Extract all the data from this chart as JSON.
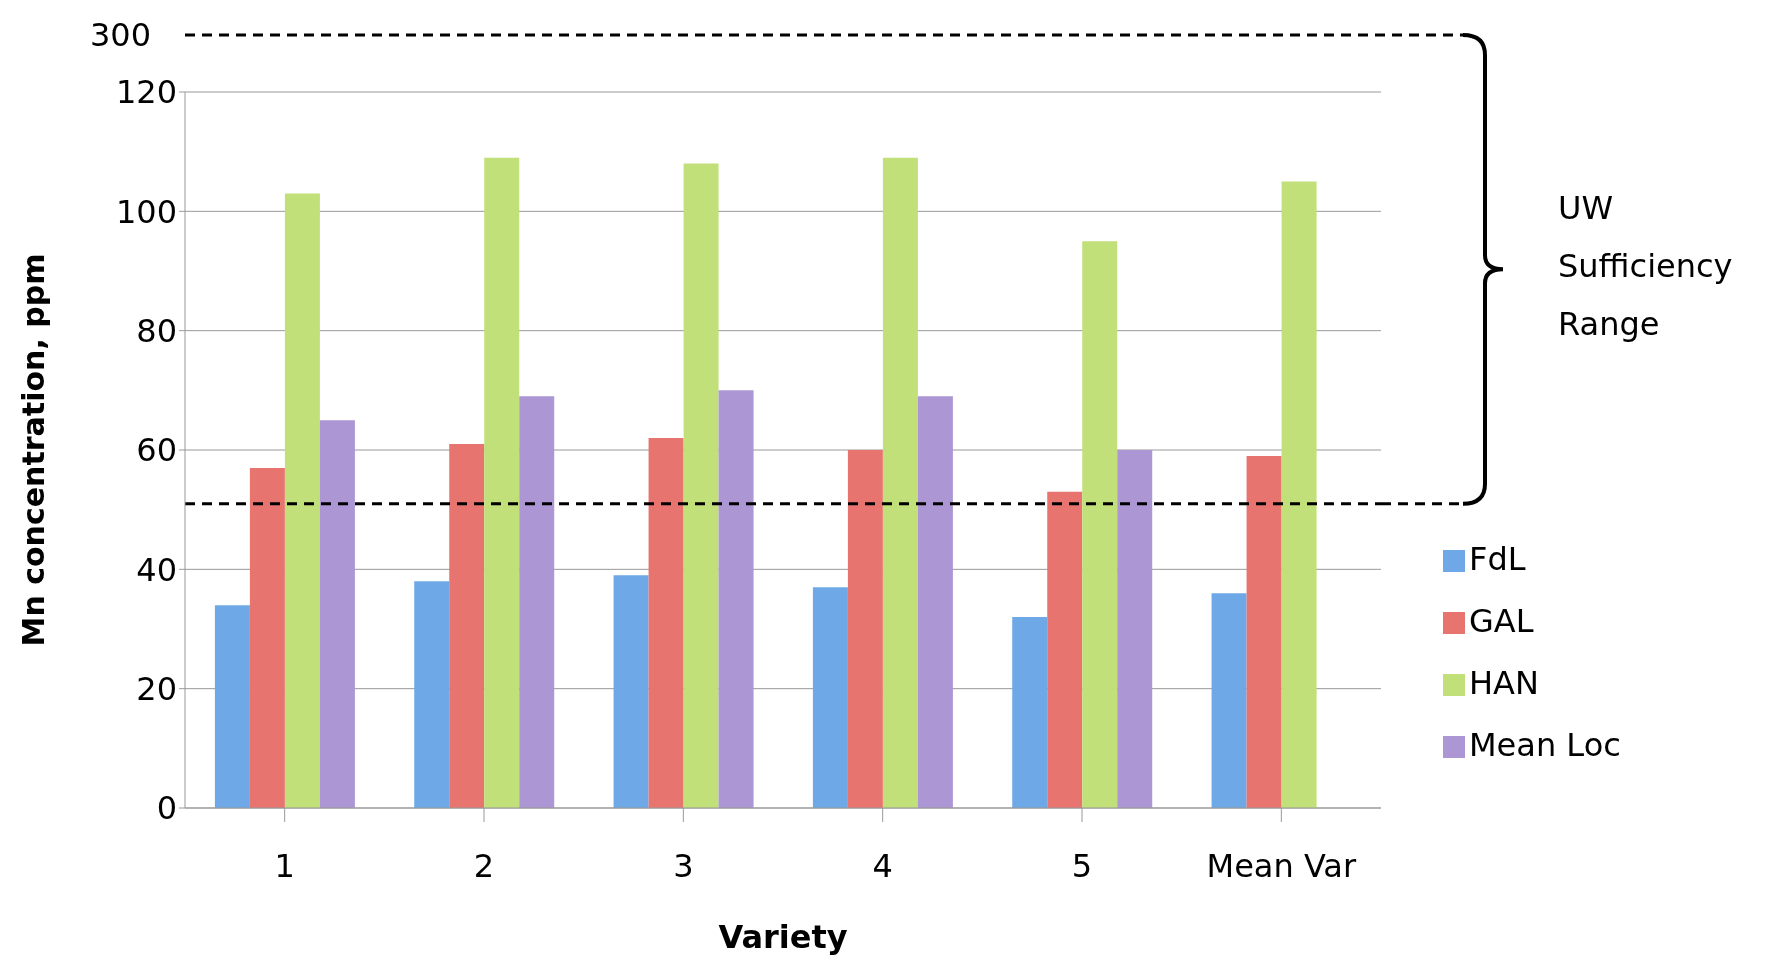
{
  "chart_data": {
    "type": "bar",
    "xlabel": "Variety",
    "ylabel": "Mn concentration, ppm",
    "categories": [
      "1",
      "2",
      "3",
      "4",
      "5",
      "Mean Var"
    ],
    "series": [
      {
        "name": "FdL",
        "color": "#6fa8e6",
        "values": [
          34,
          38,
          39,
          37,
          32,
          36
        ]
      },
      {
        "name": "GAL",
        "color": "#e87470",
        "values": [
          57,
          61,
          62,
          60,
          53,
          59
        ]
      },
      {
        "name": "HAN",
        "color": "#c2e07a",
        "values": [
          103,
          109,
          108,
          109,
          95,
          105
        ]
      },
      {
        "name": "Mean Loc",
        "color": "#ac96d4",
        "values": [
          65,
          69,
          70,
          69,
          60,
          null
        ]
      }
    ],
    "ylim": [
      0,
      120
    ],
    "yticks": [
      0,
      20,
      40,
      60,
      80,
      100,
      120
    ],
    "grid": "y",
    "legend": "right",
    "ref_lines": [
      {
        "axis": "y",
        "value": 51,
        "color": "#000000",
        "line_style": "dashed"
      }
    ],
    "annotations": [
      "300",
      "UW Sufficiency Range"
    ]
  }
}
